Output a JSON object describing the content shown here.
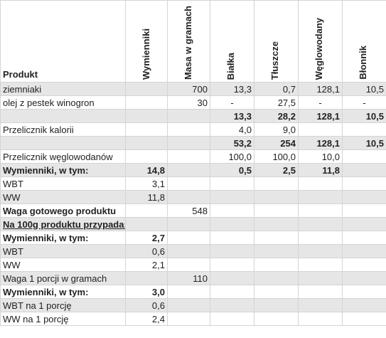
{
  "table": {
    "header": [
      "Produkt",
      "Wymienniki",
      "Masa w gramach",
      "Białka",
      "Tłuszcze",
      "Węglowodany",
      "Błonnik"
    ],
    "rows": [
      [
        "ziemniaki",
        null,
        "700",
        "13,3",
        "0,7",
        "128,1",
        "10,5"
      ],
      [
        "olej z pestek winogron",
        null,
        "30",
        "-",
        "27,5",
        "-",
        "-"
      ],
      [
        null,
        null,
        null,
        "13,3",
        "28,2",
        "128,1",
        "10,5"
      ],
      [
        "Przelicznik kalorii",
        null,
        null,
        "4,0",
        "9,0",
        null,
        null
      ],
      [
        null,
        null,
        null,
        "53,2",
        "254",
        "128,1",
        "10,5"
      ],
      [
        "Przelicznik węglowodanów",
        null,
        null,
        "100,0",
        "100,0",
        "10,0",
        null
      ],
      [
        "Wymienniki, w tym:",
        "14,8",
        null,
        "0,5",
        "2,5",
        "11,8",
        null
      ],
      [
        "WBT",
        "3,1",
        null,
        null,
        null,
        null,
        null
      ],
      [
        "WW",
        "11,8",
        null,
        null,
        null,
        null,
        null
      ],
      [
        "Waga gotowego produktu",
        null,
        "548",
        null,
        null,
        null,
        null
      ],
      [
        "Na 100g produktu przypada:",
        null,
        null,
        null,
        null,
        null,
        null
      ],
      [
        "Wymienniki, w tym:",
        "2,7",
        null,
        null,
        null,
        null,
        null
      ],
      [
        "WBT",
        "0,6",
        null,
        null,
        null,
        null,
        null
      ],
      [
        "WW",
        "2,1",
        null,
        null,
        null,
        null,
        null
      ],
      [
        "Waga 1 porcji w gramach",
        null,
        "110",
        null,
        null,
        null,
        null
      ],
      [
        "Wymienniki, w tym:",
        "3,0",
        null,
        null,
        null,
        null,
        null
      ],
      [
        "WBT na 1 porcję",
        "0,6",
        null,
        null,
        null,
        null,
        null
      ],
      [
        "WW na 1 porcję",
        "2,4",
        null,
        null,
        null,
        null,
        null
      ]
    ]
  }
}
